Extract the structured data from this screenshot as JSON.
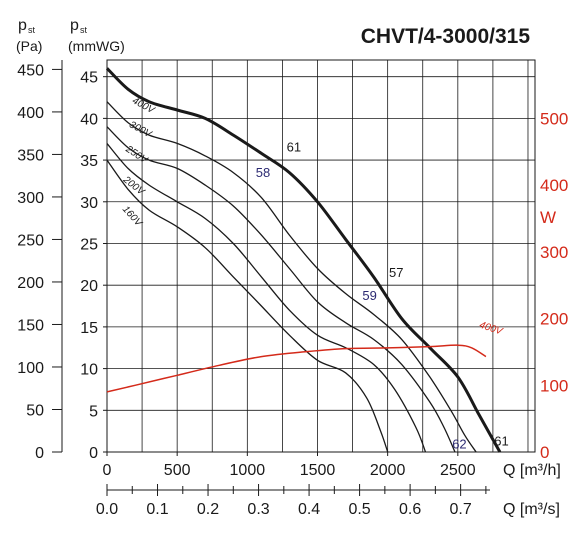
{
  "chart_data": {
    "type": "line",
    "title": "CHVT/4-3000/315",
    "left_axis_pa": {
      "label_main": "p",
      "label_sub": "st",
      "unit": "(Pa)",
      "ticks": [
        "0",
        "50",
        "100",
        "150",
        "200",
        "250",
        "300",
        "350",
        "400",
        "450"
      ]
    },
    "left_axis_mmwg": {
      "label_main": "p",
      "label_sub": "st",
      "unit": "(mmWG)",
      "ticks": [
        "0",
        "5",
        "10",
        "15",
        "20",
        "25",
        "30",
        "35",
        "40",
        "45"
      ],
      "ylim": [
        0,
        47
      ]
    },
    "right_axis_w": {
      "label": "W",
      "ticks": [
        "0",
        "100",
        "200",
        "300",
        "400",
        "500"
      ],
      "ylim": [
        0,
        587.5
      ]
    },
    "x_axis_m3h": {
      "label": "Q [m³/h]",
      "ticks": [
        "0",
        "500",
        "1000",
        "1500",
        "2000",
        "2500"
      ],
      "xlim": [
        0,
        3050
      ]
    },
    "x_axis_m3s": {
      "label": "Q [m³/s]",
      "ticks": [
        "0.0",
        "0.1",
        "0.2",
        "0.3",
        "0.4",
        "0.5",
        "0.6",
        "0.7"
      ]
    },
    "grid": true,
    "series": [
      {
        "name": "400V",
        "emphasis": true,
        "x": [
          0,
          150,
          300,
          500,
          700,
          900,
          1100,
          1300,
          1500,
          1700,
          1900,
          2100,
          2300,
          2500,
          2650,
          2750,
          2800
        ],
        "y": [
          46,
          43.5,
          42,
          41,
          40,
          38,
          35.8,
          33.5,
          30,
          25.5,
          21,
          16,
          12.5,
          9,
          4.5,
          1.5,
          0
        ]
      },
      {
        "name": "300V",
        "x": [
          0,
          150,
          300,
          500,
          700,
          900,
          1100,
          1300,
          1500,
          1700,
          1900,
          2100,
          2300,
          2450,
          2550,
          2630
        ],
        "y": [
          42,
          39.5,
          38,
          37,
          35.5,
          33.5,
          30.5,
          26,
          22,
          19,
          16.5,
          13.5,
          9,
          5,
          2,
          0
        ]
      },
      {
        "name": "250V",
        "x": [
          0,
          150,
          300,
          500,
          700,
          900,
          1100,
          1300,
          1500,
          1700,
          1900,
          2100,
          2300,
          2400,
          2480
        ],
        "y": [
          39,
          36.5,
          35,
          34,
          32,
          29.5,
          26,
          22,
          18,
          15.5,
          13.5,
          10.5,
          6,
          3,
          0
        ]
      },
      {
        "name": "200V",
        "x": [
          0,
          150,
          300,
          500,
          700,
          900,
          1100,
          1300,
          1500,
          1700,
          1900,
          2050,
          2200,
          2270
        ],
        "y": [
          37,
          34,
          32,
          30,
          28,
          25,
          21,
          17,
          14,
          12.5,
          10.5,
          7.5,
          3,
          0
        ]
      },
      {
        "name": "160V",
        "x": [
          0,
          150,
          300,
          500,
          700,
          900,
          1100,
          1300,
          1500,
          1700,
          1850,
          1950,
          2000
        ],
        "y": [
          35,
          31.5,
          29,
          27,
          24.5,
          21,
          17.5,
          14,
          11,
          9.5,
          6.5,
          2.5,
          0
        ]
      },
      {
        "name": "400V",
        "role": "power",
        "color": "#d42a1a",
        "x": [
          0,
          200,
          500,
          800,
          1100,
          1400,
          1700,
          2000,
          2300,
          2500,
          2600,
          2700
        ],
        "y": [
          90,
          100,
          115,
          130,
          143,
          150,
          155,
          156,
          158,
          160,
          156,
          143
        ]
      }
    ],
    "curve_labels": [
      "400V",
      "300V",
      "250V",
      "200V",
      "160V"
    ],
    "annotations": [
      {
        "text": "61",
        "color": "#1a1a1a",
        "x": 1280,
        "y": 36
      },
      {
        "text": "58",
        "color": "#2c2a72",
        "x": 1060,
        "y": 33
      },
      {
        "text": "57",
        "color": "#1a1a1a",
        "x": 2010,
        "y": 21
      },
      {
        "text": "59",
        "color": "#2c2a72",
        "x": 1820,
        "y": 18.2
      },
      {
        "text": "62",
        "color": "#2c2a72",
        "x": 2460,
        "y": 0.4
      },
      {
        "text": "61",
        "color": "#1a1a1a",
        "x": 2760,
        "y": 0.8
      }
    ],
    "power_label": "400V",
    "colors": {
      "pressure": "#1a1a1a",
      "power": "#d42a1a",
      "efficiency_alt": "#2c2a72"
    }
  }
}
